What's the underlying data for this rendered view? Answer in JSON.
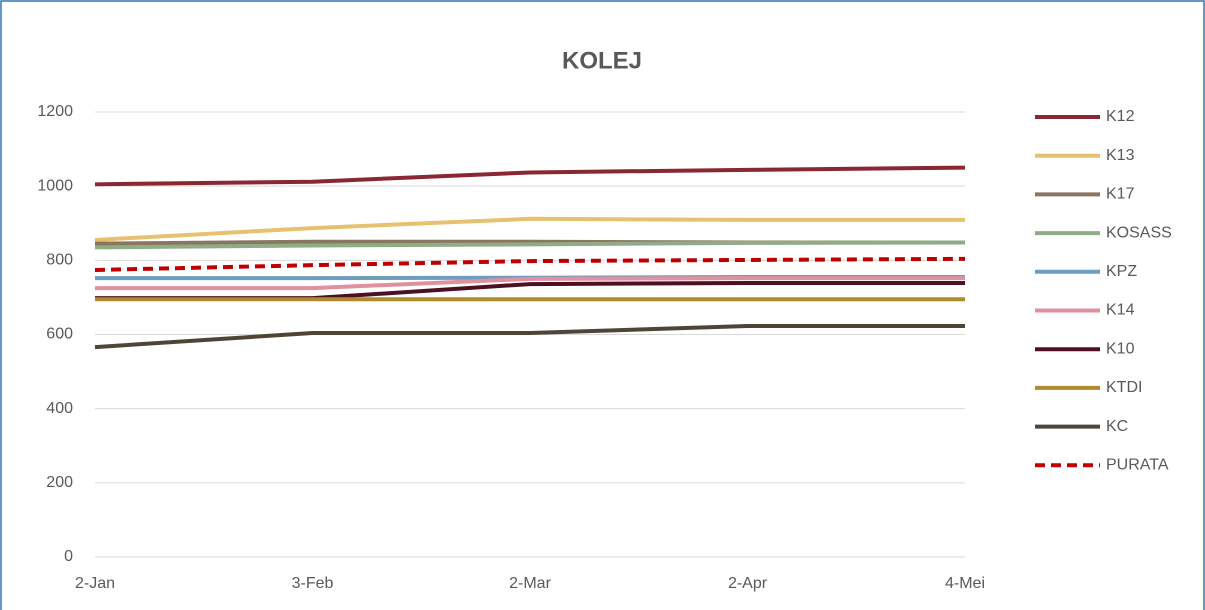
{
  "chart_data": {
    "type": "line",
    "title": "KOLEJ",
    "categories": [
      "2-Jan",
      "3-Feb",
      "2-Mar",
      "2-Apr",
      "4-Mei"
    ],
    "ylim": [
      0,
      1200
    ],
    "yticks": [
      0,
      200,
      400,
      600,
      800,
      1000,
      1200
    ],
    "grid": true,
    "legend": "right",
    "series": [
      {
        "name": "K12",
        "color": "#8b2635",
        "values": [
          1005,
          1012,
          1037,
          1044,
          1050
        ]
      },
      {
        "name": "K13",
        "color": "#e8c170",
        "values": [
          855,
          887,
          912,
          909,
          909
        ]
      },
      {
        "name": "K17",
        "color": "#8a7560",
        "values": [
          845,
          850,
          850,
          848,
          848
        ]
      },
      {
        "name": "KOSASS",
        "color": "#8fac87",
        "values": [
          835,
          840,
          843,
          847,
          848
        ]
      },
      {
        "name": "KPZ",
        "color": "#6f9dbf",
        "values": [
          752,
          752,
          753,
          755,
          755
        ]
      },
      {
        "name": "K14",
        "color": "#e0909e",
        "values": [
          725,
          725,
          750,
          752,
          752
        ]
      },
      {
        "name": "K10",
        "color": "#4d1022",
        "values": [
          698,
          698,
          736,
          739,
          739
        ]
      },
      {
        "name": "KTDI",
        "color": "#b08a2e",
        "values": [
          695,
          695,
          695,
          695,
          695
        ]
      },
      {
        "name": "KC",
        "color": "#4e4537",
        "values": [
          566,
          604,
          604,
          623,
          623
        ]
      },
      {
        "name": "PURATA",
        "color": "#c00000",
        "line_style": "dashed",
        "values": [
          774,
          787,
          798,
          801,
          804
        ]
      }
    ]
  }
}
